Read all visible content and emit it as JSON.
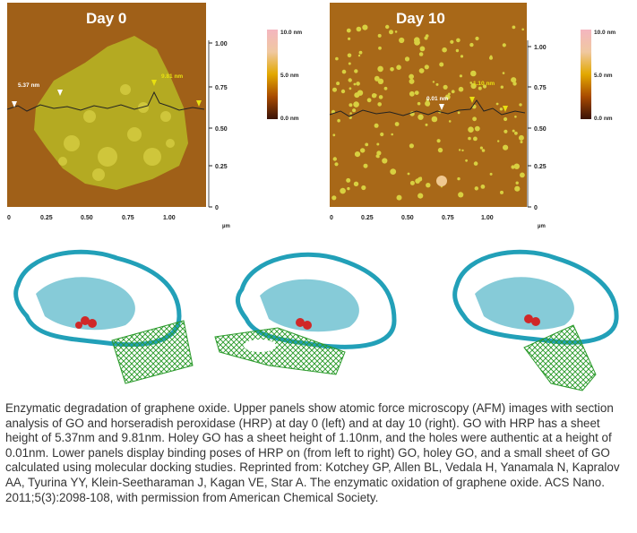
{
  "panel_left": {
    "title": "Day 0",
    "y_ticks": [
      "1.00",
      "0.75",
      "0.50",
      "0.25",
      "0"
    ],
    "x_ticks": [
      "0",
      "0.25",
      "0.50",
      "0.75",
      "1.00"
    ],
    "unit": "µm",
    "annotations": [
      "5.37 nm",
      "9.81 nm"
    ]
  },
  "panel_right": {
    "title": "Day 10",
    "y_ticks": [
      "1.00",
      "0.75",
      "0.50",
      "0.25",
      "0"
    ],
    "x_ticks": [
      "0",
      "0.25",
      "0.50",
      "0.75",
      "1.00"
    ],
    "unit": "µm",
    "annotations": [
      "0.01 nm",
      "1.10 nm"
    ]
  },
  "colorbar": {
    "max": "10.0 nm",
    "mid": "5.0 nm",
    "min": "0.0 nm",
    "colors": [
      "#f4b6c0",
      "#e2a800",
      "#a84a00",
      "#3a1208"
    ]
  },
  "colors": {
    "afm_background": "#a06018",
    "go_sheet": "#b8b020",
    "spots": "#d8d040",
    "protein": "#22a0b8",
    "heme": "#d02828",
    "graphene": "#2a9a2a"
  },
  "caption": "Enzymatic degradation of graphene oxide. Upper panels show atomic force microscopy (AFM) images with section analysis of GO and horseradish peroxidase (HRP) at day 0 (left) and at day 10 (right). GO with HRP has a sheet height of 5.37nm and 9.81nm. Holey GO has a sheet height of 1.10nm, and the holes were authentic at a height of 0.01nm. Lower panels display binding poses of HRP on (from left to right) GO, holey GO, and a small sheet of GO calculated using molecular docking studies. Reprinted from: Kotchey GP, Allen BL, Vedala H, Yanamala N, Kapralov AA, Tyurina YY, Klein-Seetharaman J, Kagan VE, Star A. The enzymatic oxidation of graphene oxide. ACS Nano. 2011;5(3):2098-108, with permission from American Chemical Society."
}
